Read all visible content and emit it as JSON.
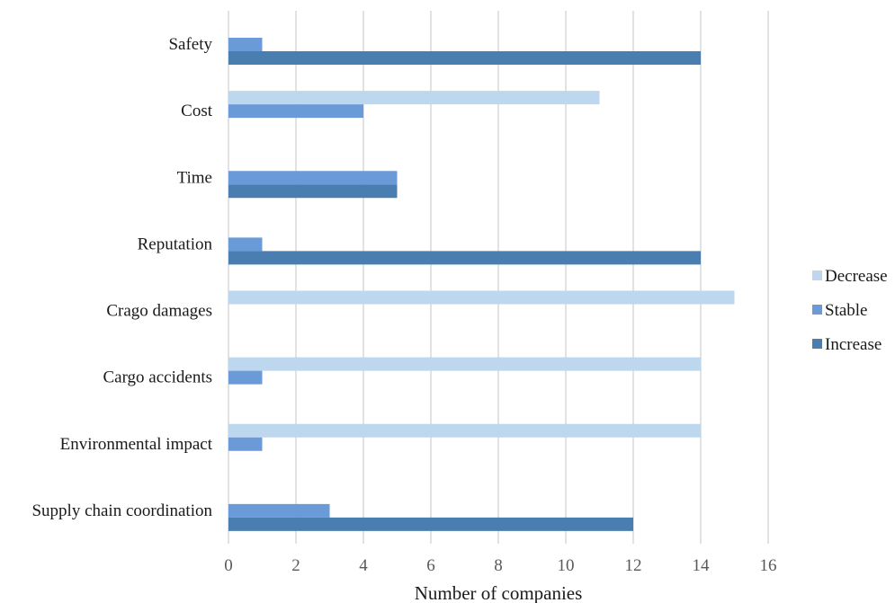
{
  "chart_data": {
    "type": "bar",
    "orientation": "horizontal",
    "categories": [
      "Safety",
      "Cost",
      "Time",
      "Reputation",
      "Crago damages",
      "Cargo accidents",
      "Environmental impact",
      "Supply chain coordination"
    ],
    "series": [
      {
        "name": "Decrease",
        "color": "#bdd7ee",
        "values": [
          0,
          11,
          0,
          0,
          15,
          14,
          14,
          0
        ]
      },
      {
        "name": "Stable",
        "color": "#6a9ad8",
        "values": [
          1,
          4,
          5,
          1,
          0,
          1,
          1,
          3
        ]
      },
      {
        "name": "Increase",
        "color": "#4a7eb0",
        "values": [
          14,
          0,
          5,
          14,
          0,
          0,
          0,
          12
        ]
      }
    ],
    "xlabel": "Number of companies",
    "ylabel": "",
    "xlim": [
      0,
      16
    ],
    "xticks": [
      "0",
      "2",
      "4",
      "6",
      "8",
      "10",
      "12",
      "14",
      "16"
    ],
    "grid": "vertical",
    "legend_position": "right"
  }
}
